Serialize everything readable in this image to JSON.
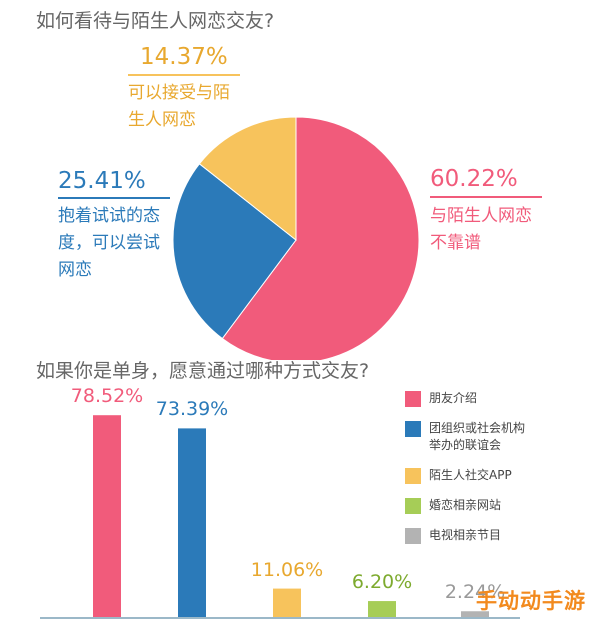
{
  "chart_data": [
    {
      "type": "pie",
      "title": "如何看待与陌生人网恋交友?",
      "slices": [
        {
          "pct_label": "60.22%",
          "value": 60.22,
          "label_lines": [
            "与陌生人网恋",
            "不靠谱"
          ],
          "color": "#f15b7b"
        },
        {
          "pct_label": "25.41%",
          "value": 25.41,
          "label_lines": [
            "抱着试试的态",
            "度，可以尝试",
            "网恋"
          ],
          "color": "#2b7ab9"
        },
        {
          "pct_label": "14.37%",
          "value": 14.37,
          "label_lines": [
            "可以接受与陌",
            "生人网恋"
          ],
          "color": "#f7c35c"
        }
      ]
    },
    {
      "type": "bar",
      "title": "如果你是单身，愿意通过哪种方式交友?",
      "categories": [
        "朋友介绍",
        "团组织或社会机构举办的联谊会",
        "陌生人社交APP",
        "婚恋相亲网站",
        "电视相亲节目"
      ],
      "values": [
        78.52,
        73.39,
        11.06,
        6.2,
        2.24
      ],
      "value_labels": [
        "78.52%",
        "73.39%",
        "11.06%",
        "6.20%",
        "2.24%"
      ],
      "colors": [
        "#f15b7b",
        "#2b7ab9",
        "#f7c35c",
        "#a6cd57",
        "#b3b3b3"
      ],
      "legend_lines": [
        [
          "朋友介绍"
        ],
        [
          "团组织或社会机构",
          "举办的联谊会"
        ],
        [
          "陌生人社交APP"
        ],
        [
          "婚恋相亲网站"
        ],
        [
          "电视相亲节目"
        ]
      ],
      "ylim": [
        0,
        100
      ]
    }
  ],
  "watermark": "手动动手游"
}
